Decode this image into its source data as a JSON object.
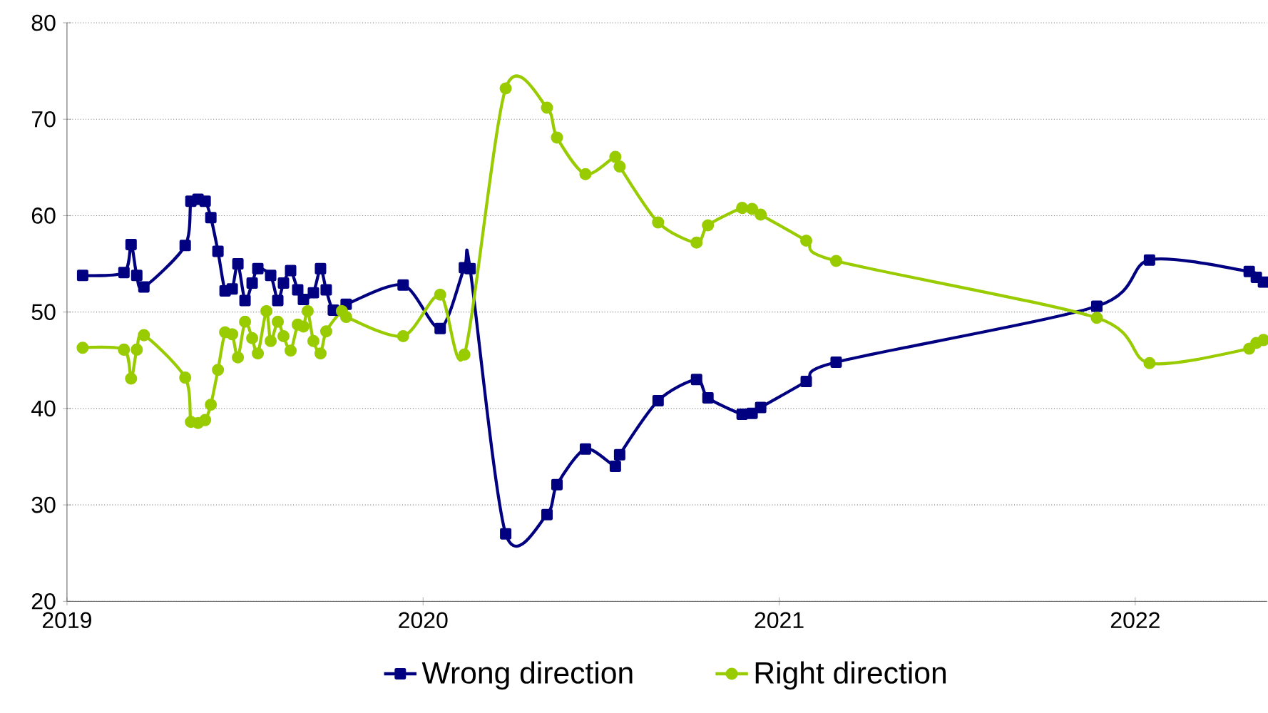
{
  "chart_data": {
    "type": "line",
    "xlim": [
      2019,
      2022.37
    ],
    "xticks": [
      2019,
      2020,
      2021,
      2022
    ],
    "ylim": [
      20,
      80
    ],
    "yticks": [
      20,
      30,
      40,
      50,
      60,
      70,
      80
    ],
    "grid": "y",
    "legend": "bottom",
    "line_style": "solid",
    "series": [
      {
        "name": "Wrong direction",
        "color": "#000080",
        "marker": "square",
        "x": [
          2019.044,
          2019.16,
          2019.18,
          2019.196,
          2019.216,
          2019.332,
          2019.348,
          2019.368,
          2019.388,
          2019.404,
          2019.424,
          2019.444,
          2019.464,
          2019.48,
          2019.5,
          2019.52,
          2019.536,
          2019.552,
          2019.572,
          2019.592,
          2019.608,
          2019.628,
          2019.648,
          2019.664,
          2019.676,
          2019.692,
          2019.712,
          2019.728,
          2019.748,
          2019.784,
          2019.944,
          2020.048,
          2020.116,
          2020.132,
          2020.232,
          2020.348,
          2020.376,
          2020.456,
          2020.54,
          2020.552,
          2020.66,
          2020.768,
          2020.8,
          2020.896,
          2020.924,
          2020.948,
          2021.076,
          2021.16,
          2021.892,
          2022.04,
          2022.32,
          2022.34,
          2022.36
        ],
        "values": [
          53.8,
          54.1,
          57,
          53.8,
          52.6,
          56.9,
          61.5,
          61.7,
          61.5,
          59.8,
          56.3,
          52.2,
          52.4,
          55,
          51.2,
          53,
          54.5,
          null,
          53.8,
          51.2,
          53,
          54.3,
          52.3,
          51.3,
          null,
          52,
          54.5,
          52.3,
          50.2,
          50.8,
          52.8,
          48.3,
          54.6,
          54.5,
          27,
          29,
          32.1,
          35.8,
          34,
          35.2,
          40.8,
          43,
          41.1,
          39.4,
          39.5,
          40.1,
          42.8,
          44.8,
          50.6,
          55.4,
          54.2,
          53.6,
          53.1
        ]
      },
      {
        "name": "Right direction",
        "color": "#99cc00",
        "marker": "circle",
        "x": [
          2019.044,
          2019.16,
          2019.18,
          2019.196,
          2019.216,
          2019.332,
          2019.348,
          2019.368,
          2019.388,
          2019.404,
          2019.424,
          2019.444,
          2019.464,
          2019.48,
          2019.5,
          2019.52,
          2019.536,
          2019.56,
          2019.572,
          2019.592,
          2019.608,
          2019.628,
          2019.648,
          2019.664,
          2019.676,
          2019.692,
          2019.712,
          2019.728,
          2019.772,
          2019.784,
          2019.944,
          2020.048,
          2020.116,
          2020.232,
          2020.348,
          2020.376,
          2020.456,
          2020.54,
          2020.552,
          2020.66,
          2020.768,
          2020.8,
          2020.896,
          2020.924,
          2020.948,
          2021.076,
          2021.16,
          2021.892,
          2022.04,
          2022.32,
          2022.34,
          2022.36
        ],
        "values": [
          46.3,
          46.1,
          43.1,
          46.1,
          47.6,
          43.2,
          38.6,
          38.5,
          38.8,
          40.4,
          44,
          47.9,
          47.7,
          45.3,
          49,
          47.3,
          45.7,
          50.1,
          47,
          49,
          47.5,
          46,
          48.7,
          48.5,
          50.1,
          47,
          45.7,
          48,
          50.1,
          49.5,
          47.5,
          51.8,
          45.6,
          73.2,
          71.2,
          68.1,
          64.3,
          66.1,
          65.1,
          59.3,
          57.2,
          59,
          60.8,
          60.7,
          60.1,
          57.4,
          55.3,
          49.4,
          44.7,
          46.2,
          46.8,
          47.1
        ]
      }
    ]
  }
}
